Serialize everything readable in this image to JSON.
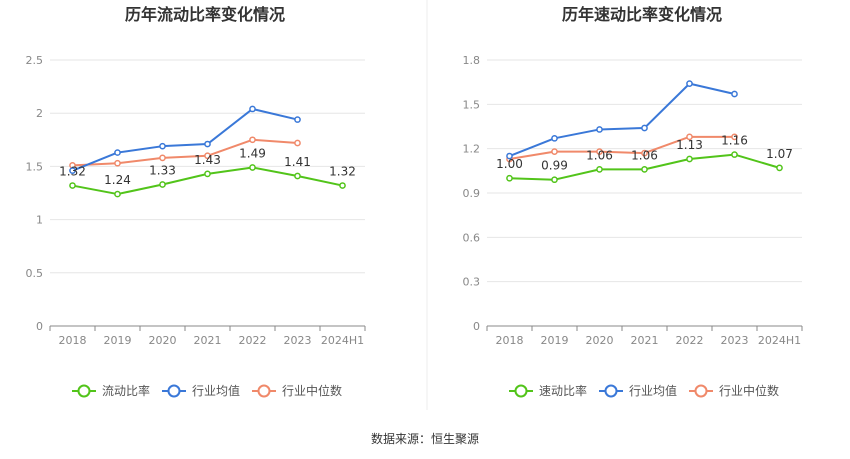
{
  "source": "数据来源：恒生聚源",
  "colors": {
    "company": "#52c41a",
    "industry_avg": "#3a78d8",
    "industry_median": "#f0896a",
    "grid": "#e6e6e6",
    "axis": "#888888"
  },
  "chart_data": [
    {
      "type": "line",
      "title": "历年流动比率变化情况",
      "categories": [
        "2018",
        "2019",
        "2020",
        "2021",
        "2022",
        "2023",
        "2024H1"
      ],
      "ylim": [
        0,
        2.5
      ],
      "yticks": [
        "0",
        "0.5",
        "1",
        "1.5",
        "2",
        "2.5"
      ],
      "grid": true,
      "legend_position": "bottom",
      "series": [
        {
          "name": "流动比率",
          "color": "#52c41a",
          "labeled": true,
          "values": [
            1.32,
            1.24,
            1.33,
            1.43,
            1.49,
            1.41,
            1.32
          ],
          "labels": [
            "1.32",
            "1.24",
            "1.33",
            "1.43",
            "1.49",
            "1.41",
            "1.32"
          ]
        },
        {
          "name": "行业均值",
          "color": "#3a78d8",
          "labeled": false,
          "values": [
            1.46,
            1.63,
            1.69,
            1.71,
            2.04,
            1.94,
            null
          ]
        },
        {
          "name": "行业中位数",
          "color": "#f0896a",
          "labeled": false,
          "values": [
            1.51,
            1.53,
            1.58,
            1.6,
            1.75,
            1.72,
            null
          ]
        }
      ]
    },
    {
      "type": "line",
      "title": "历年速动比率变化情况",
      "categories": [
        "2018",
        "2019",
        "2020",
        "2021",
        "2022",
        "2023",
        "2024H1"
      ],
      "ylim": [
        0,
        1.8
      ],
      "yticks": [
        "0",
        "0.3",
        "0.6",
        "0.9",
        "1.2",
        "1.5",
        "1.8"
      ],
      "grid": true,
      "legend_position": "bottom",
      "series": [
        {
          "name": "速动比率",
          "color": "#52c41a",
          "labeled": true,
          "values": [
            1.0,
            0.99,
            1.06,
            1.06,
            1.13,
            1.16,
            1.07
          ],
          "labels": [
            "1.00",
            "0.99",
            "1.06",
            "1.06",
            "1.13",
            "1.16",
            "1.07"
          ]
        },
        {
          "name": "行业均值",
          "color": "#3a78d8",
          "labeled": false,
          "values": [
            1.15,
            1.27,
            1.33,
            1.34,
            1.64,
            1.57,
            null
          ]
        },
        {
          "name": "行业中位数",
          "color": "#f0896a",
          "labeled": false,
          "values": [
            1.13,
            1.18,
            1.18,
            1.17,
            1.28,
            1.28,
            null
          ]
        }
      ]
    }
  ]
}
